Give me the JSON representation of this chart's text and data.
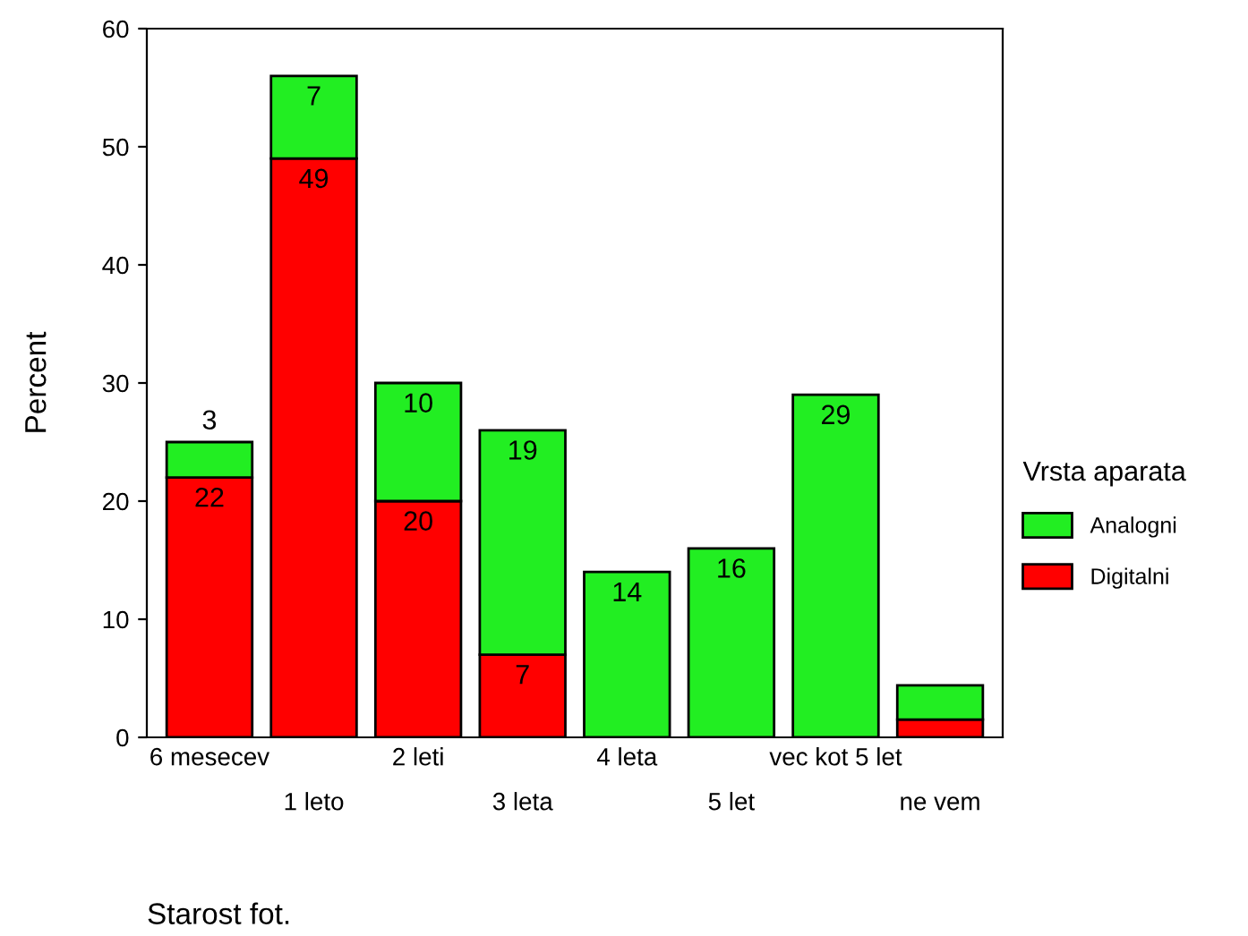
{
  "chart_data": {
    "type": "bar",
    "stacked": true,
    "xlabel": "Starost fot.",
    "ylabel": "Percent",
    "legend_title": "Vrsta aparata",
    "legend": "right",
    "categories": [
      "6 mesecev",
      "1 leto",
      "2 leti",
      "3 leta",
      "4 leta",
      "5 let",
      "vec kot 5 let",
      "ne vem"
    ],
    "series": [
      {
        "name": "Digitalni",
        "color": "#ff0000",
        "values": [
          22,
          49,
          20,
          7,
          null,
          null,
          null,
          1.5
        ],
        "value_labels": [
          "22",
          "49",
          "20",
          "7",
          null,
          null,
          null,
          null
        ]
      },
      {
        "name": "Analogni",
        "color": "#22ee22",
        "values": [
          3,
          7,
          10,
          19,
          14,
          16,
          29,
          2.9
        ],
        "value_labels": [
          "3",
          "7",
          "10",
          "19",
          "14",
          "16",
          "29",
          null
        ]
      }
    ],
    "ylim": [
      0,
      60
    ],
    "yticks": [
      0,
      10,
      20,
      30,
      40,
      50,
      60
    ],
    "grid": false
  }
}
